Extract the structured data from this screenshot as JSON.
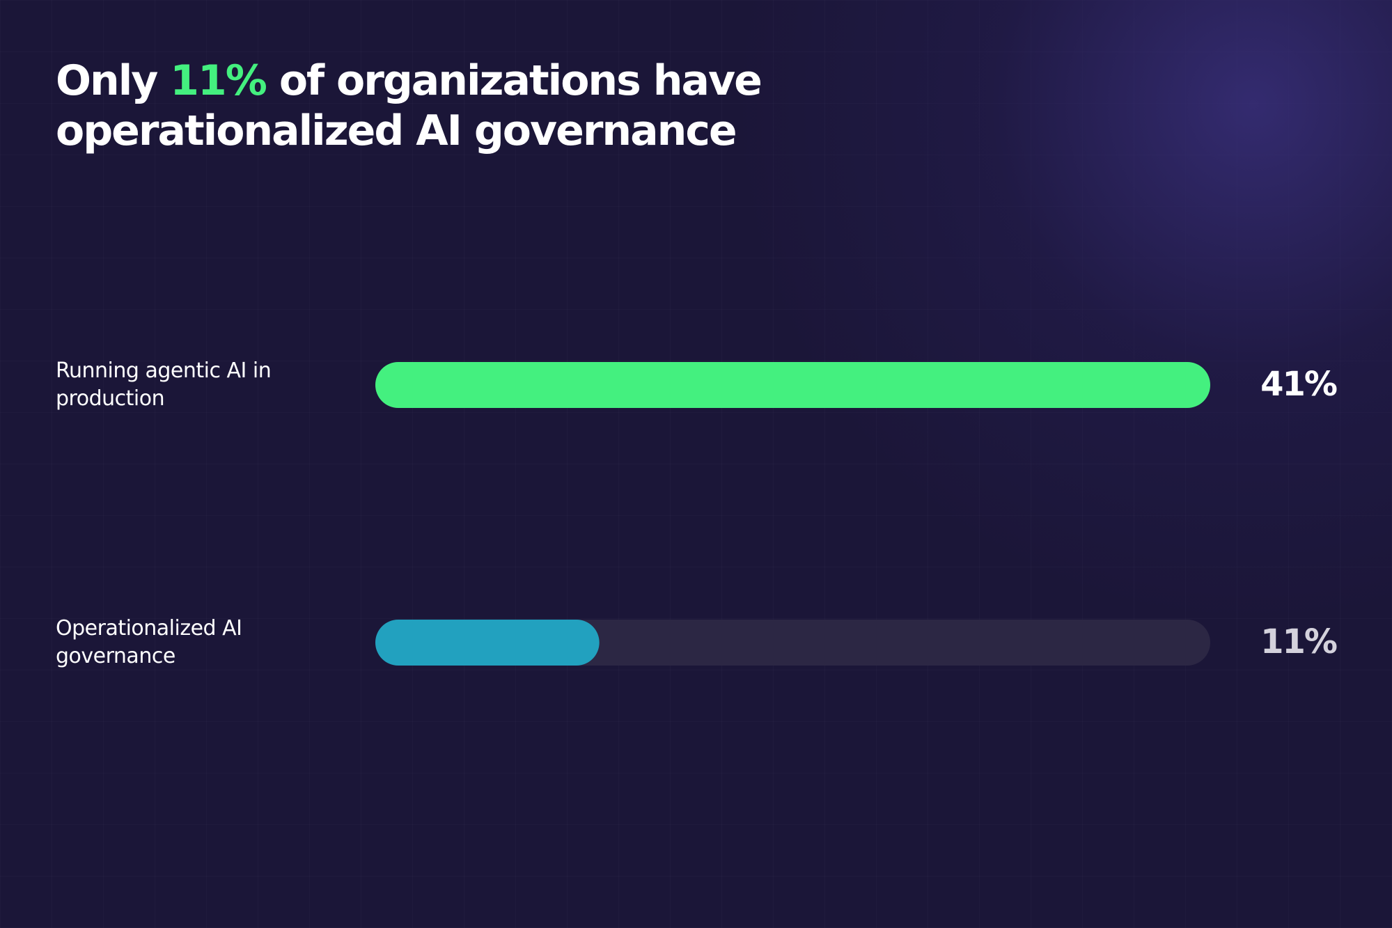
{
  "chart_data": {
    "type": "hbar",
    "title": [
      "Only",
      "11%",
      "of organizations have operationalized AI governance"
    ],
    "title_highlight_color": "#44f07f",
    "categories": [
      "Running agentic AI in production",
      "Operationalized AI governance"
    ],
    "values": [
      41,
      11
    ],
    "value_labels": [
      "41%",
      "11%"
    ],
    "colors": [
      "#44f07f",
      "#22a1bf"
    ],
    "label_colors": [
      "#ffffff",
      "#d4d2dc"
    ],
    "xlim": [
      0,
      41
    ]
  }
}
